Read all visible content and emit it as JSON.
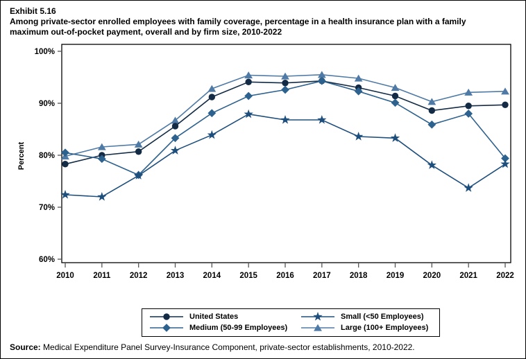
{
  "exhibit_label": "Exhibit 5.16",
  "title": "Among private-sector enrolled employees with family coverage, percentage in a health insurance plan with a family maximum out-of-pocket payment, overall and by firm size, 2010-2022",
  "source_label": "Source:",
  "source_text": " Medical Expenditure Panel Survey-Insurance Component, private-sector establishments, 2010-2022.",
  "chart_data": {
    "type": "line",
    "title": "Exhibit 5.16",
    "xlabel": "",
    "ylabel": "Percent",
    "ylim": [
      60,
      100
    ],
    "yticks": [
      100,
      90,
      80,
      70,
      60
    ],
    "ytick_labels": [
      "100%",
      "90%",
      "80%",
      "70%",
      "60%"
    ],
    "x": [
      2010,
      2011,
      2012,
      2013,
      2014,
      2015,
      2016,
      2017,
      2018,
      2019,
      2020,
      2021,
      2022
    ],
    "grid": false,
    "legend_position": "bottom",
    "frame_color": "#000000",
    "series": [
      {
        "name": "United States",
        "marker": "circle",
        "color": "#132b45",
        "values": [
          78.3,
          80.0,
          80.7,
          85.6,
          91.2,
          94.1,
          93.9,
          94.3,
          93.0,
          91.4,
          88.6,
          89.5,
          89.7
        ]
      },
      {
        "name": "Medium (50-99 Employees)",
        "marker": "diamond",
        "color": "#2d618e",
        "values": [
          80.5,
          79.3,
          76.2,
          83.3,
          88.1,
          91.4,
          92.6,
          94.3,
          92.3,
          90.1,
          85.9,
          88.0,
          79.4
        ]
      },
      {
        "name": "Small (<50 Employees)",
        "marker": "star",
        "color": "#1e4e7c",
        "values": [
          72.4,
          72.0,
          76.1,
          80.9,
          83.9,
          87.9,
          86.8,
          86.8,
          83.6,
          83.3,
          78.1,
          73.7,
          78.3
        ]
      },
      {
        "name": "Large (100+ Employees)",
        "marker": "triangle",
        "color": "#4f7aa5",
        "values": [
          79.8,
          81.6,
          82.1,
          86.7,
          92.8,
          95.4,
          95.2,
          95.5,
          94.8,
          93.0,
          90.3,
          92.1,
          92.3
        ]
      }
    ]
  }
}
